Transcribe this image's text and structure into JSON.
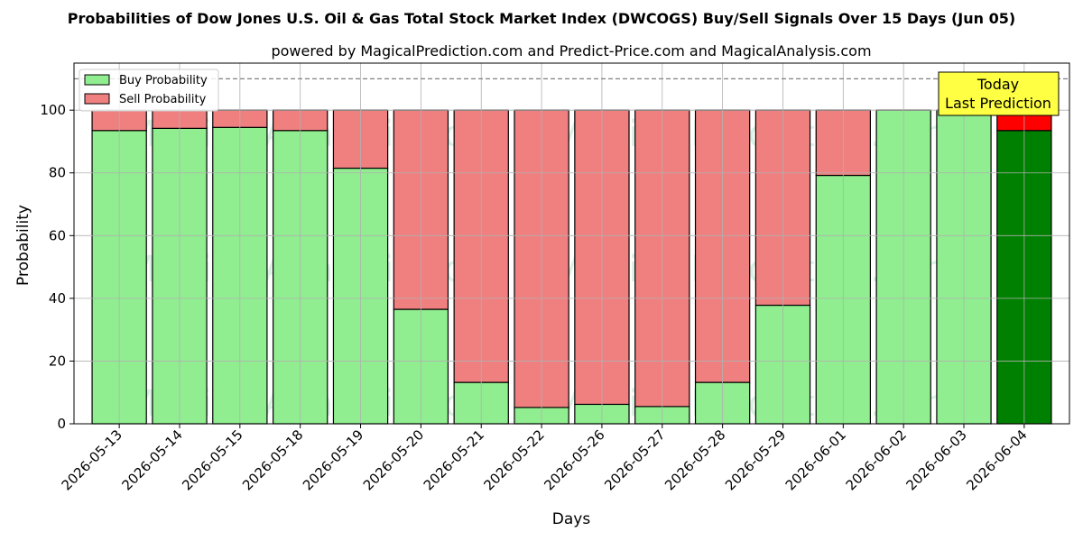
{
  "chart_data": {
    "type": "bar",
    "stacked": true,
    "title": "Probabilities of Dow Jones U.S. Oil & Gas Total Stock Market Index (DWCOGS) Buy/Sell Signals Over 15 Days (Jun 05)",
    "subtitle": "powered by MagicalPrediction.com and Predict-Price.com and MagicalAnalysis.com",
    "xlabel": "Days",
    "ylabel": "Probability",
    "ylim": [
      0,
      115
    ],
    "yticks": [
      0,
      20,
      40,
      60,
      80,
      100
    ],
    "reference_line": 110,
    "grid": true,
    "legend_position": "top-left",
    "categories": [
      "2026-05-13",
      "2026-05-14",
      "2026-05-15",
      "2026-05-18",
      "2026-05-19",
      "2026-05-20",
      "2026-05-21",
      "2026-05-22",
      "2026-05-26",
      "2026-05-27",
      "2026-05-28",
      "2026-05-29",
      "2026-06-01",
      "2026-06-02",
      "2026-06-03",
      "2026-06-04"
    ],
    "series": [
      {
        "name": "Buy Probability",
        "color": "#90ee90",
        "values": [
          93.5,
          94.2,
          94.5,
          93.5,
          81.5,
          36.5,
          13.2,
          5.2,
          6.2,
          5.5,
          13.2,
          37.8,
          79.2,
          100,
          100,
          93.5
        ]
      },
      {
        "name": "Sell Probability",
        "color": "#f08080",
        "values": [
          6.5,
          5.8,
          5.5,
          6.5,
          18.5,
          63.5,
          86.8,
          94.8,
          93.8,
          94.5,
          86.8,
          62.2,
          20.8,
          0,
          0,
          6.5
        ]
      }
    ],
    "highlight": {
      "index": 15,
      "buy_color": "#008000",
      "sell_color": "#ff0000"
    },
    "annotation": {
      "lines": [
        "Today",
        "Last Prediction"
      ],
      "color": "#ffff44"
    },
    "watermarks": [
      "MagicalAnalysis.com",
      "MagicalPrediction.com"
    ]
  }
}
